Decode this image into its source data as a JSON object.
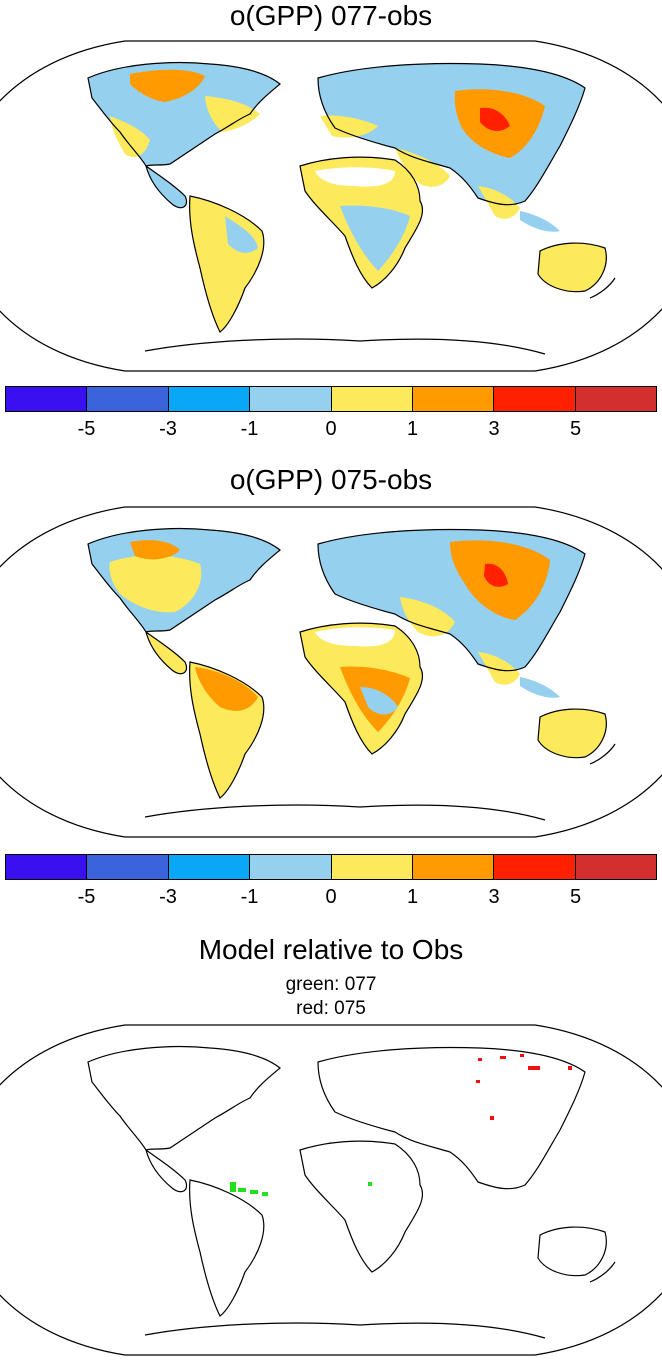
{
  "panels": [
    {
      "title": "o(GPP) 077-obs",
      "variant": 0
    },
    {
      "title": "o(GPP) 075-obs",
      "variant": 1
    }
  ],
  "colorbar": {
    "colors": [
      "#3a10f0",
      "#3b63dc",
      "#0aa7f7",
      "#96d0ef",
      "#fde95c",
      "#ff9a00",
      "#ff2000",
      "#d42f2f"
    ],
    "ticks": [
      "-5",
      "-3",
      "-1",
      "0",
      "1",
      "3",
      "5"
    ]
  },
  "comparison": {
    "title": "Model relative to Obs",
    "legend_green": "green: 077",
    "legend_red": "red: 075",
    "green_color": "#22e01a",
    "red_color": "#ee1010"
  }
}
